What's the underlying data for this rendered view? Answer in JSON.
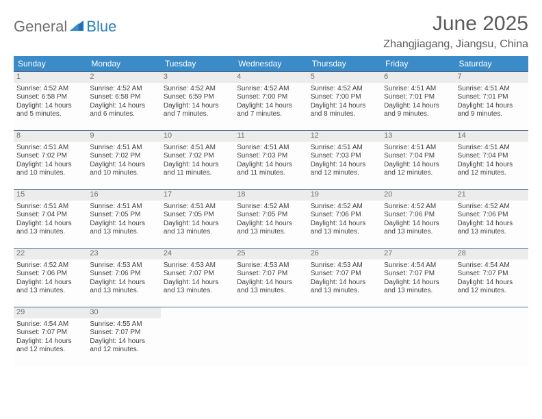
{
  "brand": {
    "part1": "General",
    "part2": "Blue"
  },
  "title": "June 2025",
  "location": "Zhangjiagang, Jiangsu, China",
  "columns": [
    "Sunday",
    "Monday",
    "Tuesday",
    "Wednesday",
    "Thursday",
    "Friday",
    "Saturday"
  ],
  "colors": {
    "header_bg": "#3b8bc9",
    "header_text": "#ffffff",
    "daynum_bg": "#ececec",
    "border": "#4a6a8a",
    "logo_gray": "#6e6e6e",
    "logo_blue": "#2a7fbf"
  },
  "weeks": [
    [
      {
        "n": "1",
        "sr": "Sunrise: 4:52 AM",
        "ss": "Sunset: 6:58 PM",
        "d1": "Daylight: 14 hours",
        "d2": "and 5 minutes."
      },
      {
        "n": "2",
        "sr": "Sunrise: 4:52 AM",
        "ss": "Sunset: 6:58 PM",
        "d1": "Daylight: 14 hours",
        "d2": "and 6 minutes."
      },
      {
        "n": "3",
        "sr": "Sunrise: 4:52 AM",
        "ss": "Sunset: 6:59 PM",
        "d1": "Daylight: 14 hours",
        "d2": "and 7 minutes."
      },
      {
        "n": "4",
        "sr": "Sunrise: 4:52 AM",
        "ss": "Sunset: 7:00 PM",
        "d1": "Daylight: 14 hours",
        "d2": "and 7 minutes."
      },
      {
        "n": "5",
        "sr": "Sunrise: 4:52 AM",
        "ss": "Sunset: 7:00 PM",
        "d1": "Daylight: 14 hours",
        "d2": "and 8 minutes."
      },
      {
        "n": "6",
        "sr": "Sunrise: 4:51 AM",
        "ss": "Sunset: 7:01 PM",
        "d1": "Daylight: 14 hours",
        "d2": "and 9 minutes."
      },
      {
        "n": "7",
        "sr": "Sunrise: 4:51 AM",
        "ss": "Sunset: 7:01 PM",
        "d1": "Daylight: 14 hours",
        "d2": "and 9 minutes."
      }
    ],
    [
      {
        "n": "8",
        "sr": "Sunrise: 4:51 AM",
        "ss": "Sunset: 7:02 PM",
        "d1": "Daylight: 14 hours",
        "d2": "and 10 minutes."
      },
      {
        "n": "9",
        "sr": "Sunrise: 4:51 AM",
        "ss": "Sunset: 7:02 PM",
        "d1": "Daylight: 14 hours",
        "d2": "and 10 minutes."
      },
      {
        "n": "10",
        "sr": "Sunrise: 4:51 AM",
        "ss": "Sunset: 7:02 PM",
        "d1": "Daylight: 14 hours",
        "d2": "and 11 minutes."
      },
      {
        "n": "11",
        "sr": "Sunrise: 4:51 AM",
        "ss": "Sunset: 7:03 PM",
        "d1": "Daylight: 14 hours",
        "d2": "and 11 minutes."
      },
      {
        "n": "12",
        "sr": "Sunrise: 4:51 AM",
        "ss": "Sunset: 7:03 PM",
        "d1": "Daylight: 14 hours",
        "d2": "and 12 minutes."
      },
      {
        "n": "13",
        "sr": "Sunrise: 4:51 AM",
        "ss": "Sunset: 7:04 PM",
        "d1": "Daylight: 14 hours",
        "d2": "and 12 minutes."
      },
      {
        "n": "14",
        "sr": "Sunrise: 4:51 AM",
        "ss": "Sunset: 7:04 PM",
        "d1": "Daylight: 14 hours",
        "d2": "and 12 minutes."
      }
    ],
    [
      {
        "n": "15",
        "sr": "Sunrise: 4:51 AM",
        "ss": "Sunset: 7:04 PM",
        "d1": "Daylight: 14 hours",
        "d2": "and 13 minutes."
      },
      {
        "n": "16",
        "sr": "Sunrise: 4:51 AM",
        "ss": "Sunset: 7:05 PM",
        "d1": "Daylight: 14 hours",
        "d2": "and 13 minutes."
      },
      {
        "n": "17",
        "sr": "Sunrise: 4:51 AM",
        "ss": "Sunset: 7:05 PM",
        "d1": "Daylight: 14 hours",
        "d2": "and 13 minutes."
      },
      {
        "n": "18",
        "sr": "Sunrise: 4:52 AM",
        "ss": "Sunset: 7:05 PM",
        "d1": "Daylight: 14 hours",
        "d2": "and 13 minutes."
      },
      {
        "n": "19",
        "sr": "Sunrise: 4:52 AM",
        "ss": "Sunset: 7:06 PM",
        "d1": "Daylight: 14 hours",
        "d2": "and 13 minutes."
      },
      {
        "n": "20",
        "sr": "Sunrise: 4:52 AM",
        "ss": "Sunset: 7:06 PM",
        "d1": "Daylight: 14 hours",
        "d2": "and 13 minutes."
      },
      {
        "n": "21",
        "sr": "Sunrise: 4:52 AM",
        "ss": "Sunset: 7:06 PM",
        "d1": "Daylight: 14 hours",
        "d2": "and 13 minutes."
      }
    ],
    [
      {
        "n": "22",
        "sr": "Sunrise: 4:52 AM",
        "ss": "Sunset: 7:06 PM",
        "d1": "Daylight: 14 hours",
        "d2": "and 13 minutes."
      },
      {
        "n": "23",
        "sr": "Sunrise: 4:53 AM",
        "ss": "Sunset: 7:06 PM",
        "d1": "Daylight: 14 hours",
        "d2": "and 13 minutes."
      },
      {
        "n": "24",
        "sr": "Sunrise: 4:53 AM",
        "ss": "Sunset: 7:07 PM",
        "d1": "Daylight: 14 hours",
        "d2": "and 13 minutes."
      },
      {
        "n": "25",
        "sr": "Sunrise: 4:53 AM",
        "ss": "Sunset: 7:07 PM",
        "d1": "Daylight: 14 hours",
        "d2": "and 13 minutes."
      },
      {
        "n": "26",
        "sr": "Sunrise: 4:53 AM",
        "ss": "Sunset: 7:07 PM",
        "d1": "Daylight: 14 hours",
        "d2": "and 13 minutes."
      },
      {
        "n": "27",
        "sr": "Sunrise: 4:54 AM",
        "ss": "Sunset: 7:07 PM",
        "d1": "Daylight: 14 hours",
        "d2": "and 13 minutes."
      },
      {
        "n": "28",
        "sr": "Sunrise: 4:54 AM",
        "ss": "Sunset: 7:07 PM",
        "d1": "Daylight: 14 hours",
        "d2": "and 12 minutes."
      }
    ],
    [
      {
        "n": "29",
        "sr": "Sunrise: 4:54 AM",
        "ss": "Sunset: 7:07 PM",
        "d1": "Daylight: 14 hours",
        "d2": "and 12 minutes."
      },
      {
        "n": "30",
        "sr": "Sunrise: 4:55 AM",
        "ss": "Sunset: 7:07 PM",
        "d1": "Daylight: 14 hours",
        "d2": "and 12 minutes."
      },
      null,
      null,
      null,
      null,
      null
    ]
  ]
}
